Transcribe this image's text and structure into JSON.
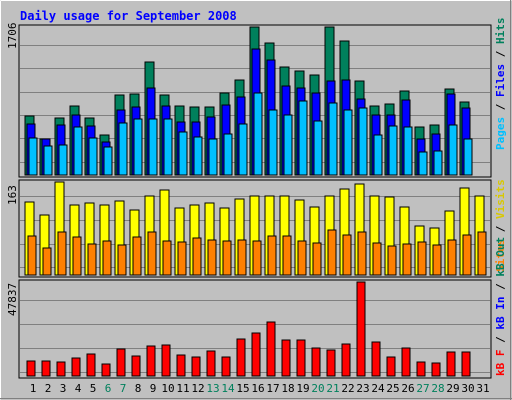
{
  "chart_data": {
    "type": "bar",
    "title": "Daily usage for September 2008",
    "categories": [
      "1",
      "2",
      "3",
      "4",
      "5",
      "6",
      "7",
      "8",
      "9",
      "10",
      "11",
      "12",
      "13",
      "14",
      "15",
      "16",
      "17",
      "18",
      "19",
      "20",
      "21",
      "22",
      "23",
      "24",
      "25",
      "26",
      "27",
      "28",
      "29",
      "30",
      "31"
    ],
    "weekend_days": [
      "6",
      "7",
      "13",
      "14",
      "20",
      "21",
      "27",
      "28"
    ],
    "panels": [
      {
        "id": "hits-files-pages",
        "ymax": 1706,
        "ymax_label": "1706",
        "grid": true,
        "legend": [
          {
            "text": "Pages",
            "color": "#00c0ff"
          },
          {
            "text": " / ",
            "color": "#000000"
          },
          {
            "text": "Files",
            "color": "#0000ff"
          },
          {
            "text": " / ",
            "color": "#000000"
          },
          {
            "text": "Hits",
            "color": "#00805c"
          }
        ],
        "series": [
          {
            "name": "Hits",
            "color": "#00805c",
            "values": [
              680,
              410,
              660,
              800,
              660,
              460,
              920,
              930,
              1300,
              920,
              800,
              780,
              780,
              950,
              1100,
              1706,
              1520,
              1240,
              1200,
              1150,
              1706,
              1550,
              1080,
              800,
              820,
              970,
              550,
              580,
              990,
              840,
              0
            ]
          },
          {
            "name": "Files",
            "color": "#0000ff",
            "values": [
              590,
              410,
              580,
              690,
              560,
              380,
              750,
              780,
              1000,
              790,
              610,
              610,
              670,
              810,
              900,
              1450,
              1330,
              1030,
              1000,
              940,
              1080,
              1090,
              880,
              690,
              690,
              860,
              410,
              470,
              930,
              770,
              0
            ]
          },
          {
            "name": "Pages",
            "color": "#00c0ff",
            "values": [
              430,
              330,
              350,
              550,
              430,
              320,
              600,
              640,
              640,
              640,
              500,
              440,
              420,
              470,
              590,
              950,
              750,
              690,
              850,
              620,
              830,
              750,
              770,
              460,
              560,
              550,
              270,
              280,
              580,
              410,
              0
            ]
          }
        ]
      },
      {
        "id": "visits-sites",
        "ymax": 163,
        "ymax_label": "163",
        "grid": true,
        "legend": [
          {
            "text": "Sites",
            "color": "#ff8000"
          },
          {
            "text": " / ",
            "color": "#000000"
          },
          {
            "text": "Visits",
            "color": "#d8c800"
          }
        ],
        "series": [
          {
            "name": "Visits",
            "color": "#ffff00",
            "values": [
              128,
              106,
              163,
              123,
              126,
              122,
              129,
              114,
              138,
              149,
              117,
              123,
              126,
              118,
              134,
              138,
              139,
              139,
              132,
              120,
              138,
              150,
              159,
              138,
              137,
              119,
              86,
              83,
              112,
              153,
              138
            ]
          },
          {
            "name": "Sites",
            "color": "#ff8000",
            "values": [
              69,
              47,
              76,
              67,
              54,
              59,
              53,
              66,
              76,
              60,
              58,
              64,
              62,
              60,
              62,
              60,
              68,
              68,
              60,
              56,
              79,
              70,
              75,
              56,
              51,
              55,
              57,
              53,
              62,
              70,
              75
            ]
          }
        ]
      },
      {
        "id": "kbin-kbout",
        "ymax": 47837,
        "ymax_label": "47837",
        "grid": true,
        "legend": [
          {
            "text": "kB F",
            "color": "#ff0000"
          },
          {
            "text": " / ",
            "color": "#000000"
          },
          {
            "text": "kB In",
            "color": "#0000ff"
          },
          {
            "text": " / ",
            "color": "#000000"
          },
          {
            "text": "kB Out",
            "color": "#00805c"
          }
        ],
        "series": [
          {
            "name": "kB F",
            "color": "#ff0000",
            "values": [
              7500,
              7500,
              7000,
              9000,
              11000,
              6200,
              13500,
              10000,
              15500,
              16000,
              10800,
              9500,
              12800,
              9500,
              18800,
              21800,
              27300,
              18300,
              18200,
              14200,
              13200,
              16500,
              47837,
              17300,
              9500,
              14000,
              7000,
              6500,
              12400,
              12000,
              0
            ]
          }
        ]
      }
    ],
    "xlabel": "",
    "ylabel": ""
  }
}
